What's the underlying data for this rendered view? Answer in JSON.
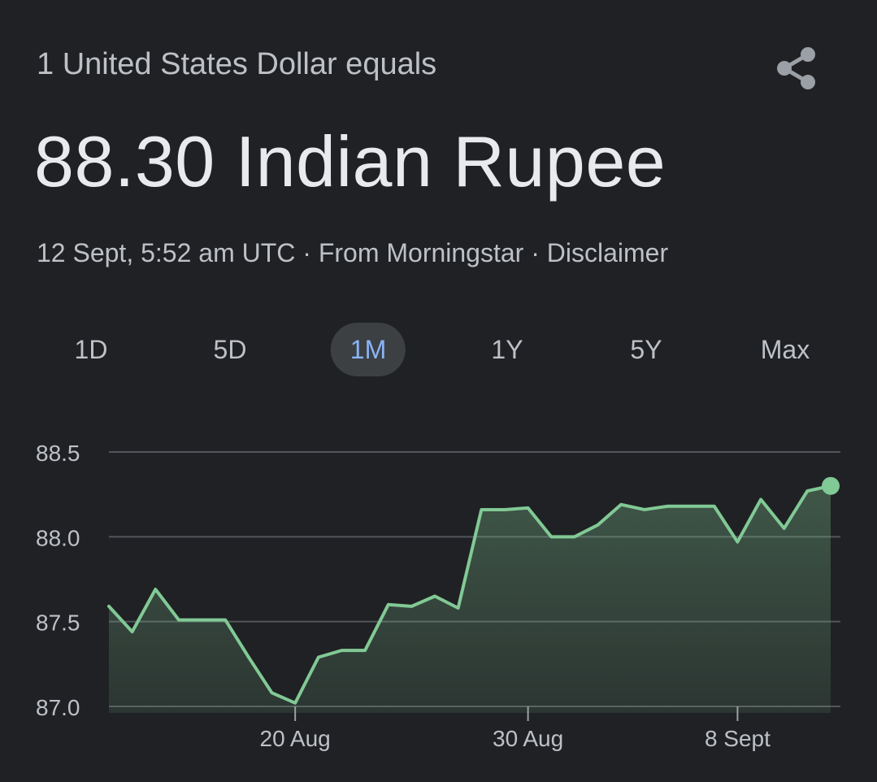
{
  "header": {
    "subtitle": "1 United States Dollar equals",
    "headline": "88.30 Indian Rupee"
  },
  "meta": {
    "timestamp": "12 Sept, 5:52 am UTC",
    "separator": " · ",
    "source": "From Morningstar",
    "disclaimer": "Disclaimer"
  },
  "icons": {
    "share": "share-icon"
  },
  "tabs": [
    {
      "label": "1D",
      "active": false
    },
    {
      "label": "5D",
      "active": false
    },
    {
      "label": "1M",
      "active": true
    },
    {
      "label": "1Y",
      "active": false
    },
    {
      "label": "5Y",
      "active": false
    },
    {
      "label": "Max",
      "active": false
    }
  ],
  "colors": {
    "background": "#202124",
    "line": "#81c995",
    "active_tab_bg": "#3c4043",
    "active_tab_text": "#8ab4f8",
    "grid": "#5f6368"
  },
  "chart_data": {
    "type": "area",
    "ylim": [
      87.0,
      88.5
    ],
    "yticks": [
      "88.5",
      "88.0",
      "87.5",
      "87.0"
    ],
    "ytick_values": [
      88.5,
      88.0,
      87.5,
      87.0
    ],
    "xticks": [
      {
        "label": "20 Aug",
        "date": "2025-08-20"
      },
      {
        "label": "30 Aug",
        "date": "2025-08-30"
      },
      {
        "label": "8 Sept",
        "date": "2025-09-08"
      }
    ],
    "x": [
      "2025-08-12",
      "2025-08-13",
      "2025-08-14",
      "2025-08-15",
      "2025-08-16",
      "2025-08-17",
      "2025-08-18",
      "2025-08-19",
      "2025-08-20",
      "2025-08-21",
      "2025-08-22",
      "2025-08-23",
      "2025-08-24",
      "2025-08-25",
      "2025-08-26",
      "2025-08-27",
      "2025-08-28",
      "2025-08-29",
      "2025-08-30",
      "2025-08-31",
      "2025-09-01",
      "2025-09-02",
      "2025-09-03",
      "2025-09-04",
      "2025-09-05",
      "2025-09-06",
      "2025-09-07",
      "2025-09-08",
      "2025-09-09",
      "2025-09-10",
      "2025-09-11",
      "2025-09-12"
    ],
    "y": [
      87.59,
      87.44,
      87.69,
      87.51,
      87.51,
      87.51,
      87.29,
      87.08,
      87.02,
      87.29,
      87.33,
      87.33,
      87.6,
      87.59,
      87.65,
      87.58,
      88.16,
      88.16,
      88.17,
      88.0,
      88.0,
      88.07,
      88.19,
      88.16,
      88.18,
      88.18,
      88.18,
      87.97,
      88.22,
      88.05,
      88.27,
      88.3
    ],
    "grid": true
  }
}
